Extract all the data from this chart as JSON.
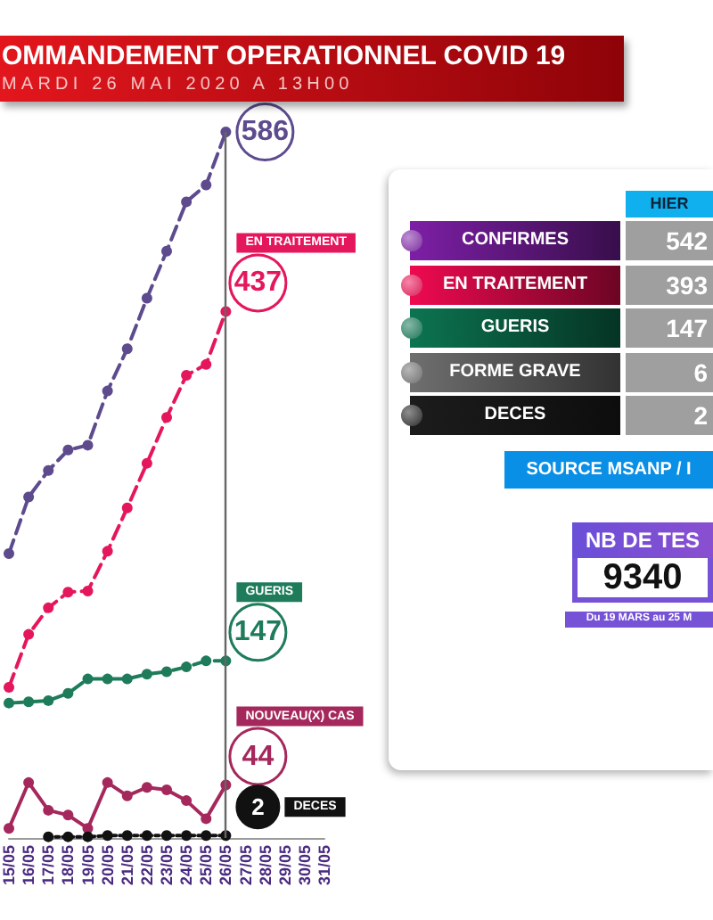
{
  "chart_data": [
    {
      "type": "line",
      "title": "OMMANDEMENT OPERATIONNEL COVID 19",
      "subtitle": "MARDI 26 MAI 2020 A 13H00",
      "categories": [
        "15/05",
        "16/05",
        "17/05",
        "18/05",
        "19/05",
        "20/05",
        "21/05",
        "22/05",
        "23/05",
        "24/05",
        "25/05",
        "26/05",
        "27/05",
        "28/05",
        "29/05",
        "30/05",
        "31/05"
      ],
      "series": [
        {
          "color": "#5d4b8e",
          "values": [
            236,
            283,
            305,
            322,
            326,
            371,
            406,
            448,
            487,
            528,
            542,
            586,
            null,
            null,
            null,
            null,
            null
          ],
          "value_labels": [
            null,
            null,
            null,
            null,
            null,
            null,
            null,
            null,
            null,
            null,
            null,
            "586",
            null,
            null,
            null,
            null,
            null
          ]
        },
        {
          "name": "EN TRAITEMENT",
          "color": "#e5175c",
          "values": [
            125,
            169,
            191,
            204,
            205,
            238,
            274,
            311,
            349,
            384,
            393,
            437,
            null,
            null,
            null,
            null,
            null
          ],
          "value_labels": [
            null,
            null,
            null,
            null,
            null,
            null,
            null,
            null,
            null,
            null,
            null,
            "437",
            null,
            null,
            null,
            null,
            null
          ]
        },
        {
          "name": "GUERIS",
          "color": "#1f7c5a",
          "values": [
            112,
            113,
            114,
            120,
            132,
            132,
            132,
            136,
            138,
            142,
            147,
            147,
            null,
            null,
            null,
            null,
            null
          ],
          "value_labels": [
            null,
            null,
            null,
            null,
            null,
            null,
            null,
            null,
            null,
            null,
            null,
            "147",
            null,
            null,
            null,
            null,
            null
          ]
        },
        {
          "name": "NOUVEAU(X) CAS",
          "color": "#a5285c",
          "line_style": "solid",
          "values": [
            8,
            46,
            23,
            19,
            8,
            46,
            35,
            42,
            40,
            31,
            16,
            44,
            null,
            null,
            null,
            null,
            null
          ],
          "value_labels": [
            null,
            null,
            null,
            null,
            null,
            null,
            null,
            null,
            null,
            null,
            null,
            "44",
            null,
            null,
            null,
            null,
            null
          ]
        },
        {
          "name": "DECES",
          "color": "#111111",
          "line_style": "dotted",
          "values": [
            null,
            null,
            1,
            1,
            1,
            2,
            2,
            2,
            2,
            2,
            2,
            2,
            null,
            null,
            null,
            null,
            null
          ],
          "value_labels": [
            null,
            null,
            null,
            null,
            null,
            null,
            null,
            null,
            null,
            null,
            null,
            "2",
            null,
            null,
            null,
            null,
            null
          ]
        }
      ],
      "tick_labels": "x",
      "marker": "circle",
      "line_style": "dashed",
      "ref_lines": [
        {
          "axis": "x",
          "value": "26/05",
          "color": "#666666"
        }
      ]
    },
    {
      "type": "other",
      "categories": [
        "CONFIRMES",
        "EN TRAITEMENT",
        "GUERIS",
        "FORME GRAVE",
        "DECES"
      ],
      "series": [
        {
          "name": "HIER",
          "color": "#9f9f9f",
          "values": [
            542,
            393,
            147,
            6,
            2
          ]
        }
      ],
      "colors": [
        "#7d1fa6",
        "#ef0a50",
        "#0c7451",
        "#6f6f6f",
        "#1c1c1c"
      ],
      "data_labels": true,
      "annotations": [
        "SOURCE MSANP / I",
        "NB DE TES",
        "9340",
        "Du 19 MARS au 25 M"
      ]
    }
  ]
}
